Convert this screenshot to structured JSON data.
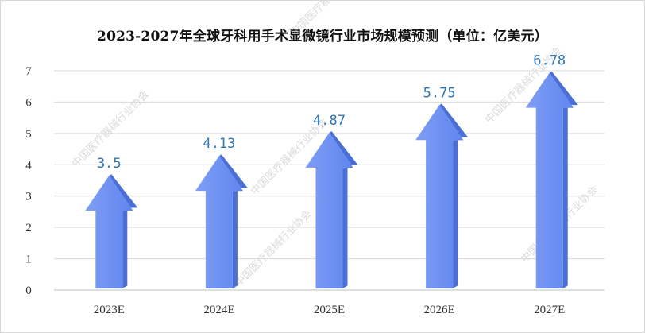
{
  "chart_data": {
    "type": "bar",
    "title": "2023-2027年全球牙科用手术显微镜行业市场规模预测（单位：亿美元）",
    "categories": [
      "2023E",
      "2024E",
      "2025E",
      "2026E",
      "2027E"
    ],
    "values": [
      3.5,
      4.13,
      4.87,
      5.75,
      6.78
    ],
    "value_labels": [
      "3.5",
      "4.13",
      "4.87",
      "5.75",
      "6.78"
    ],
    "yticks": [
      "0",
      "1",
      "2",
      "3",
      "4",
      "5",
      "6",
      "7"
    ],
    "ylim": [
      0,
      7
    ],
    "xlabel": "",
    "ylabel": "",
    "grid": true,
    "legend": "none",
    "bar_style": "arrow",
    "colors": {
      "bar_fill": "#6b8ff2",
      "bar_side": "#4a6fd6",
      "value_label": "#2e75b6",
      "grid": "#d9d9d9",
      "axis": "#bfbfbf"
    }
  },
  "watermark_text": "中国医疗器械行业协会"
}
